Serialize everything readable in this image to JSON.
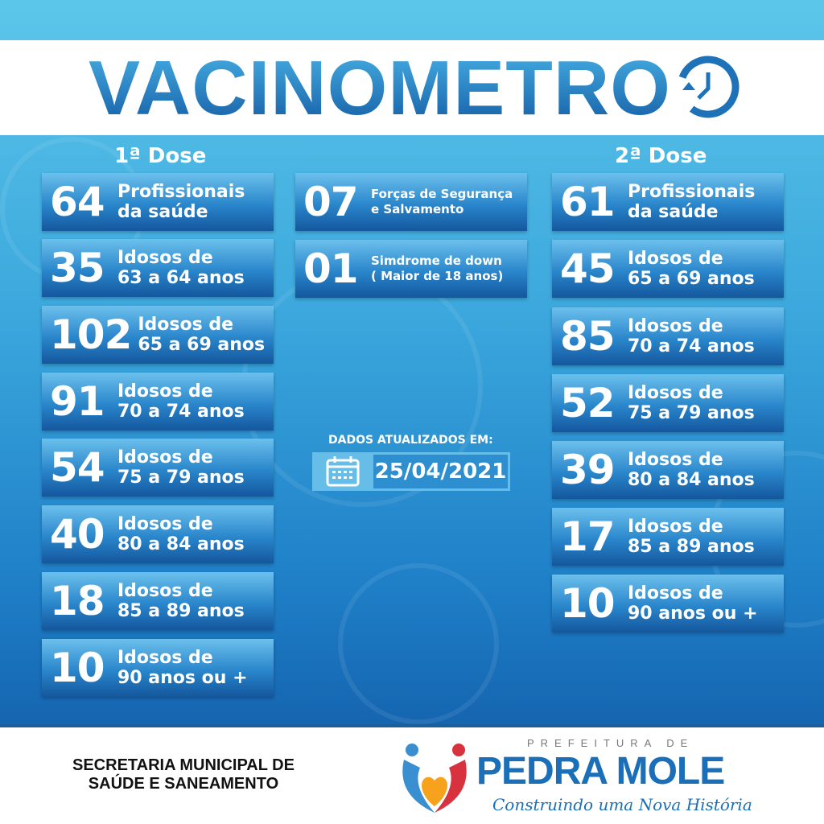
{
  "title": "VACINOMETRO",
  "first_dose": {
    "heading": "1ª Dose",
    "items": [
      {
        "value": "64",
        "label1": "Profissionais",
        "label2": "da saúde"
      },
      {
        "value": "35",
        "label1": "Idosos de",
        "label2": "63 a 64 anos"
      },
      {
        "value": "102",
        "label1": "Idosos de",
        "label2": "65 a 69 anos"
      },
      {
        "value": "91",
        "label1": "Idosos de",
        "label2": "70 a 74 anos"
      },
      {
        "value": "54",
        "label1": "Idosos de",
        "label2": "75 a 79 anos"
      },
      {
        "value": "40",
        "label1": "Idosos de",
        "label2": "80 a 84 anos"
      },
      {
        "value": "18",
        "label1": "Idosos de",
        "label2": "85 a 89 anos"
      },
      {
        "value": "10",
        "label1": "Idosos de",
        "label2": "90 anos ou +"
      }
    ]
  },
  "middle": {
    "items": [
      {
        "value": "07",
        "label1": "Forças de Segurança",
        "label2": "e Salvamento"
      },
      {
        "value": "01",
        "label1": "Simdrome de down",
        "label2": "( Maior de 18 anos)"
      }
    ],
    "updated_label": "DADOS ATUALIZADOS EM:",
    "updated_date": "25/04/2021",
    "calendar_icon": "calendar-icon"
  },
  "second_dose": {
    "heading": "2ª Dose",
    "items": [
      {
        "value": "61",
        "label1": "Profissionais",
        "label2": "da saúde"
      },
      {
        "value": "45",
        "label1": "Idosos de",
        "label2": "65 a 69 anos"
      },
      {
        "value": "85",
        "label1": "Idosos de",
        "label2": "70 a 74 anos"
      },
      {
        "value": "52",
        "label1": "Idosos de",
        "label2": "75 a 79 anos"
      },
      {
        "value": "39",
        "label1": "Idosos de",
        "label2": "80 a 84 anos"
      },
      {
        "value": "17",
        "label1": "Idosos de",
        "label2": "85 a 89 anos"
      },
      {
        "value": "10",
        "label1": "Idosos de",
        "label2": "90 anos ou +"
      }
    ]
  },
  "footer": {
    "secretaria_line1": "SECRETARIA MUNICIPAL DE",
    "secretaria_line2": "SAÚDE E SANEAMENTO",
    "prefeitura": "PREFEITURA DE",
    "city": "PEDRA MOLE",
    "slogan": "Construindo uma Nova História"
  },
  "colors": {
    "primary": "#1d72b8",
    "light": "#5cc6ea",
    "dark": "#14579e",
    "logo_red": "#d8323f",
    "logo_orange": "#f6a21c"
  }
}
